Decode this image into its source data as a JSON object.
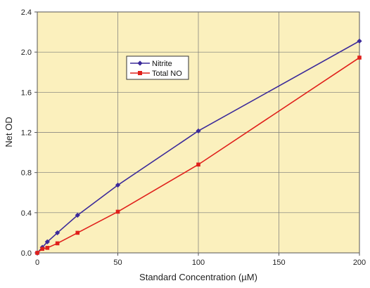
{
  "chart_data": {
    "type": "line",
    "xlabel": "Standard Concentration (µM)",
    "ylabel": "Net OD",
    "xlim": [
      0,
      200
    ],
    "ylim": [
      0,
      2.4
    ],
    "x_ticks": [
      "0",
      "50",
      "100",
      "150",
      "200"
    ],
    "y_ticks": [
      "0.0",
      "0.4",
      "0.8",
      "1.2",
      "1.6",
      "2.0",
      "2.4"
    ],
    "grid": true,
    "legend_position": "upper-left-center",
    "plot_background": "#fbf0bd",
    "series": [
      {
        "name": "Nitrite",
        "color": "#3b2a9a",
        "marker": "diamond",
        "x": [
          0,
          3.125,
          6.25,
          12.5,
          25,
          50,
          100,
          200
        ],
        "y": [
          0.0,
          0.055,
          0.11,
          0.2,
          0.375,
          0.675,
          1.215,
          2.11
        ]
      },
      {
        "name": "Total NO",
        "color": "#e0201b",
        "marker": "square",
        "x": [
          0,
          3.125,
          6.25,
          12.5,
          25,
          50,
          100,
          200
        ],
        "y": [
          0.0,
          0.04,
          0.05,
          0.095,
          0.2,
          0.41,
          0.88,
          1.945
        ]
      }
    ]
  }
}
